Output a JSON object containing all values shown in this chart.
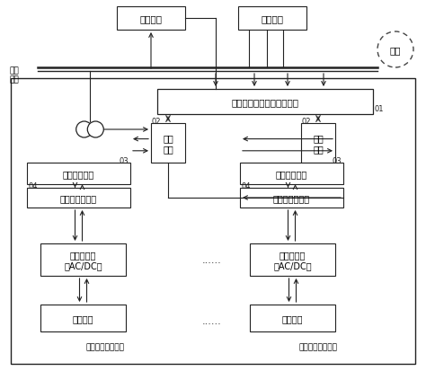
{
  "bg_color": "#ffffff",
  "fig_width": 4.74,
  "fig_height": 4.14,
  "dpi": 100,
  "title": "电池储能系统能量管控系统",
  "label_shuju": "数据采集",
  "label_wangdiao": "电网调度",
  "label_wangluo": "电网",
  "label_jiaoliu": "交流\n母线",
  "label_tongxun": "通讯\n模块",
  "label_jiudi": "就地监控系统",
  "label_zishi": "自适应控制模块",
  "label_bianliuqi": "储能变流器\n（AC/DC）",
  "label_dianchi": "储能电池",
  "label_tici": "梯次利用储能系统",
  "label_changgui": "常规电池储能系统",
  "dots": "......",
  "tag01": "01",
  "tag02": "02",
  "tag03": "03",
  "tag04": "04"
}
